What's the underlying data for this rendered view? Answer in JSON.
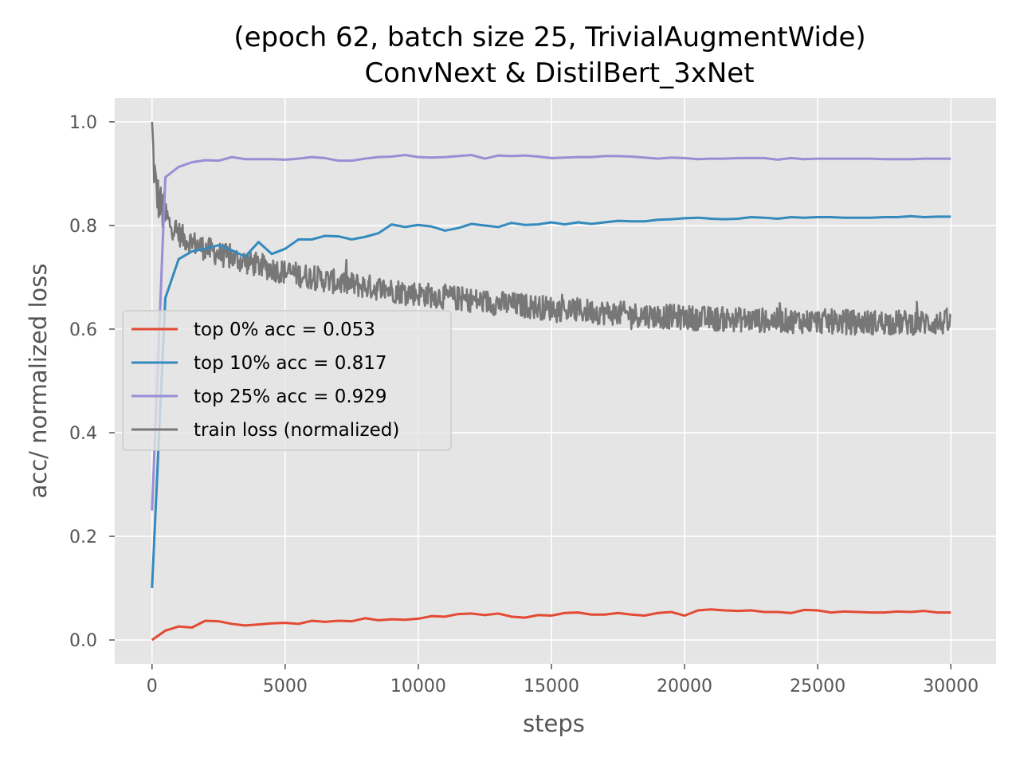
{
  "chart_data": {
    "type": "line",
    "title_line1": "(epoch 62, batch size 25, TrivialAugmentWide)",
    "title_line2": "ConvNext & DistilBert_3xNet",
    "xlabel": "steps",
    "ylabel": "acc/ normalized loss",
    "xlim": [
      -1400,
      31700
    ],
    "ylim": [
      -0.046,
      1.046
    ],
    "xticks": [
      0,
      5000,
      10000,
      15000,
      20000,
      25000,
      30000
    ],
    "xtick_labels": [
      "0",
      "5000",
      "10000",
      "15000",
      "20000",
      "25000",
      "30000"
    ],
    "yticks": [
      0.0,
      0.2,
      0.4,
      0.6,
      0.8,
      1.0
    ],
    "ytick_labels": [
      "0.0",
      "0.2",
      "0.4",
      "0.6",
      "0.8",
      "1.0"
    ],
    "grid": true,
    "legend_position": "center-left",
    "colors": {
      "background": "#E5E5E5",
      "grid": "#FFFFFF",
      "top0": "#E24A33",
      "top10": "#348ABD",
      "top25": "#988ED5",
      "loss": "#777777"
    },
    "series": [
      {
        "name": "top 0% acc = 0.053",
        "color_key": "top0",
        "x": [
          0,
          500,
          1000,
          1500,
          2000,
          2500,
          3000,
          3500,
          4000,
          4500,
          5000,
          5500,
          6000,
          6500,
          7000,
          7500,
          8000,
          8500,
          9000,
          9500,
          10000,
          10500,
          11000,
          11500,
          12000,
          12500,
          13000,
          13500,
          14000,
          14500,
          15000,
          15500,
          16000,
          16500,
          17000,
          17500,
          18000,
          18500,
          19000,
          19500,
          20000,
          20500,
          21000,
          21500,
          22000,
          22500,
          23000,
          23500,
          24000,
          24500,
          25000,
          25500,
          26000,
          26500,
          27000,
          27500,
          28000,
          28500,
          29000,
          29500,
          30000
        ],
        "y": [
          0.0,
          0.018,
          0.026,
          0.024,
          0.037,
          0.036,
          0.031,
          0.028,
          0.03,
          0.032,
          0.033,
          0.031,
          0.037,
          0.035,
          0.037,
          0.036,
          0.042,
          0.038,
          0.04,
          0.039,
          0.041,
          0.046,
          0.045,
          0.05,
          0.051,
          0.048,
          0.051,
          0.045,
          0.043,
          0.048,
          0.047,
          0.052,
          0.053,
          0.049,
          0.049,
          0.052,
          0.049,
          0.047,
          0.052,
          0.054,
          0.047,
          0.057,
          0.059,
          0.057,
          0.056,
          0.057,
          0.054,
          0.054,
          0.052,
          0.058,
          0.057,
          0.053,
          0.055,
          0.054,
          0.053,
          0.053,
          0.055,
          0.054,
          0.056,
          0.053,
          0.053
        ]
      },
      {
        "name": "top 10% acc = 0.817",
        "color_key": "top10",
        "x": [
          0,
          500,
          1000,
          1500,
          2000,
          2500,
          3000,
          3500,
          4000,
          4500,
          5000,
          5500,
          6000,
          6500,
          7000,
          7500,
          8000,
          8500,
          9000,
          9500,
          10000,
          10500,
          11000,
          11500,
          12000,
          12500,
          13000,
          13500,
          14000,
          14500,
          15000,
          15500,
          16000,
          16500,
          17000,
          17500,
          18000,
          18500,
          19000,
          19500,
          20000,
          20500,
          21000,
          21500,
          22000,
          22500,
          23000,
          23500,
          24000,
          24500,
          25000,
          25500,
          26000,
          26500,
          27000,
          27500,
          28000,
          28500,
          29000,
          29500,
          30000
        ],
        "y": [
          0.1,
          0.66,
          0.735,
          0.75,
          0.755,
          0.762,
          0.752,
          0.74,
          0.768,
          0.745,
          0.755,
          0.773,
          0.773,
          0.78,
          0.779,
          0.773,
          0.778,
          0.785,
          0.802,
          0.797,
          0.801,
          0.798,
          0.79,
          0.795,
          0.803,
          0.8,
          0.797,
          0.805,
          0.801,
          0.802,
          0.806,
          0.802,
          0.806,
          0.803,
          0.806,
          0.809,
          0.808,
          0.808,
          0.811,
          0.812,
          0.814,
          0.815,
          0.813,
          0.812,
          0.813,
          0.816,
          0.815,
          0.813,
          0.816,
          0.815,
          0.816,
          0.816,
          0.815,
          0.815,
          0.815,
          0.816,
          0.816,
          0.818,
          0.816,
          0.817,
          0.817
        ]
      },
      {
        "name": "top 25% acc = 0.929",
        "color_key": "top25",
        "x": [
          0,
          500,
          1000,
          1500,
          2000,
          2500,
          3000,
          3500,
          4000,
          4500,
          5000,
          5500,
          6000,
          6500,
          7000,
          7500,
          8000,
          8500,
          9000,
          9500,
          10000,
          10500,
          11000,
          11500,
          12000,
          12500,
          13000,
          13500,
          14000,
          14500,
          15000,
          15500,
          16000,
          16500,
          17000,
          17500,
          18000,
          18500,
          19000,
          19500,
          20000,
          20500,
          21000,
          21500,
          22000,
          22500,
          23000,
          23500,
          24000,
          24500,
          25000,
          25500,
          26000,
          26500,
          27000,
          27500,
          28000,
          28500,
          29000,
          29500,
          30000
        ],
        "y": [
          0.25,
          0.893,
          0.913,
          0.922,
          0.926,
          0.925,
          0.932,
          0.928,
          0.928,
          0.928,
          0.927,
          0.929,
          0.932,
          0.93,
          0.925,
          0.925,
          0.929,
          0.932,
          0.933,
          0.936,
          0.932,
          0.931,
          0.932,
          0.934,
          0.936,
          0.929,
          0.935,
          0.934,
          0.935,
          0.933,
          0.93,
          0.931,
          0.932,
          0.932,
          0.934,
          0.934,
          0.933,
          0.931,
          0.929,
          0.931,
          0.93,
          0.928,
          0.929,
          0.929,
          0.93,
          0.93,
          0.93,
          0.927,
          0.93,
          0.928,
          0.929,
          0.929,
          0.929,
          0.929,
          0.929,
          0.928,
          0.928,
          0.928,
          0.929,
          0.929,
          0.929
        ]
      },
      {
        "name": "train loss (normalized)",
        "color_key": "loss",
        "curve": {
          "x": [
            0,
            60,
            150,
            300,
            500,
            800,
            1200,
            1800,
            2500,
            3500,
            5000,
            7000,
            9000,
            11000,
            13000,
            15000,
            17000,
            19000,
            21000,
            23000,
            25000,
            27000,
            30000
          ],
          "y": [
            1.0,
            0.92,
            0.87,
            0.84,
            0.815,
            0.795,
            0.775,
            0.76,
            0.745,
            0.73,
            0.71,
            0.69,
            0.675,
            0.662,
            0.65,
            0.64,
            0.632,
            0.625,
            0.62,
            0.617,
            0.615,
            0.613,
            0.612
          ],
          "noise_amplitude": 0.024
        }
      }
    ]
  }
}
